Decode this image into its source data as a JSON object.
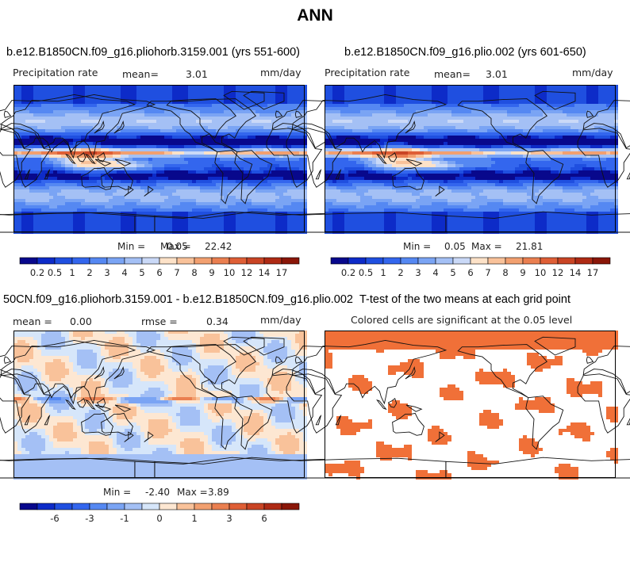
{
  "figure": {
    "title": "ANN"
  },
  "panels": [
    {
      "title": "b.e12.B1850CN.f09_g16.pliohorb.3159.001 (yrs 551-600)",
      "left_label": "Precipitation rate",
      "mean_label": "mean=",
      "mean_value": "3.01",
      "units": "mm/day",
      "min_label": "Min =",
      "min_value": "0.05",
      "max_label": "Max =",
      "max_value": "22.42"
    },
    {
      "title": "b.e12.B1850CN.f09_g16.plio.002 (yrs 601-650)",
      "left_label": "Precipitation rate",
      "mean_label": "mean=",
      "mean_value": "3.01",
      "units": "mm/day",
      "min_label": "Min =",
      "min_value": "0.05",
      "max_label": "Max =",
      "max_value": "21.81"
    },
    {
      "title": "50CN.f09_g16.pliohorb.3159.001 - b.e12.B1850CN.f09_g16.plio.002",
      "mean_label": "mean =",
      "mean_value": "0.00",
      "rmse_label": "rmse =",
      "rmse_value": "0.34",
      "units": "mm/day",
      "min_label": "Min =",
      "min_value": "-2.40",
      "max_label": "Max =",
      "max_value": "3.89"
    },
    {
      "title": "T-test of the two means at each grid point",
      "subtitle": "Colored cells are significant at the 0.05 level"
    }
  ],
  "colors": {
    "precip_scale": [
      "#08088c",
      "#0d2bc8",
      "#1f4fe0",
      "#3366ee",
      "#5588f2",
      "#7aa4f4",
      "#a4c0f5",
      "#cad9f7",
      "#fde2c8",
      "#f9c29a",
      "#f2a070",
      "#ea7f50",
      "#df5f36",
      "#c94424",
      "#ae2a14",
      "#8a1608"
    ],
    "diff_scale": [
      "#08088c",
      "#0d2bc8",
      "#1f4fe0",
      "#3366ee",
      "#5588f2",
      "#7aa4f4",
      "#a4c0f5",
      "#d6e6fa",
      "#fde7d2",
      "#f9c29a",
      "#f2a070",
      "#ea7f50",
      "#df5f36",
      "#c94424",
      "#ae2a14",
      "#8a1608"
    ],
    "significant": "#f07038",
    "coast": "#111111"
  },
  "chart_data": [
    {
      "type": "heatmap",
      "title": "b.e12.B1850CN.f09_g16.pliohorb.3159.001 (yrs 551-600)",
      "variable": "Precipitation rate",
      "units": "mm/day",
      "mean": 3.01,
      "min": 0.05,
      "max": 22.42,
      "colorbar_levels": [
        0.2,
        0.5,
        1,
        2,
        3,
        4,
        5,
        6,
        7,
        8,
        9,
        10,
        12,
        14,
        17
      ],
      "colorbar_labels": [
        "0.2",
        "0.5",
        "1",
        "2",
        "3",
        "4",
        "5",
        "6",
        "7",
        "8",
        "9",
        "10",
        "12",
        "14",
        "17"
      ]
    },
    {
      "type": "heatmap",
      "title": "b.e12.B1850CN.f09_g16.plio.002 (yrs 601-650)",
      "variable": "Precipitation rate",
      "units": "mm/day",
      "mean": 3.01,
      "min": 0.05,
      "max": 21.81,
      "colorbar_levels": [
        0.2,
        0.5,
        1,
        2,
        3,
        4,
        5,
        6,
        7,
        8,
        9,
        10,
        12,
        14,
        17
      ],
      "colorbar_labels": [
        "0.2",
        "0.5",
        "1",
        "2",
        "3",
        "4",
        "5",
        "6",
        "7",
        "8",
        "9",
        "10",
        "12",
        "14",
        "17"
      ]
    },
    {
      "type": "heatmap",
      "title": "50CN.f09_g16.pliohorb.3159.001 - b.e12.B1850CN.f09_g16.plio.002",
      "units": "mm/day",
      "mean": 0.0,
      "rmse": 0.34,
      "min": -2.4,
      "max": 3.89,
      "colorbar_labels": [
        "-6",
        "-3",
        "-1",
        "0",
        "1",
        "3",
        "6"
      ]
    },
    {
      "type": "heatmap",
      "title": "T-test of the two means at each grid point",
      "subtitle": "Colored cells are significant at the 0.05 level",
      "significance_level": 0.05
    }
  ]
}
